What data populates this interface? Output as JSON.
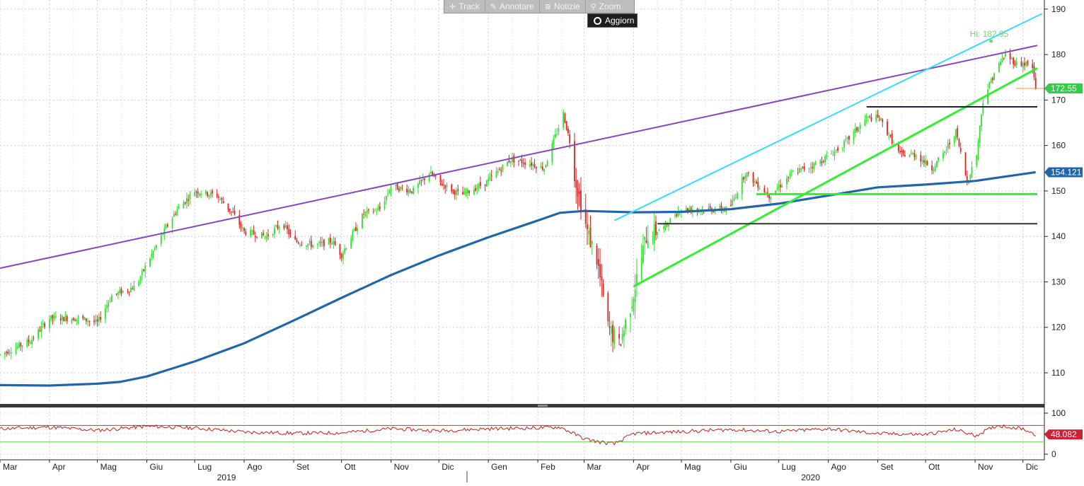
{
  "toolbar": {
    "track_label": "Track",
    "annotate_label": "Annotare",
    "news_label": "Notizie",
    "zoom_label": "Zoom",
    "update_label": "Aggiorn"
  },
  "colors": {
    "up": "#33dd33",
    "down": "#dd2222",
    "ma": "#2266aa",
    "purple_line": "#8844bb",
    "cyan_line": "#33ddff",
    "green_line": "#33ee33",
    "rsi": "#bb2222",
    "rsi_upper": "#cc3333",
    "rsi_lower": "#66dd44",
    "last_price": "#33cc44",
    "ma_label": "#2266aa",
    "rsi_label": "#cc2233"
  },
  "chart_data": [
    {
      "type": "candlestick",
      "panel": "price",
      "ylim": [
        103,
        192
      ],
      "yticks": [
        110,
        120,
        130,
        140,
        150,
        160,
        170,
        180,
        190
      ],
      "date_range": [
        "2019-03-01",
        "2020-12-10"
      ],
      "x_month_labels": [
        {
          "date": "2019-03-01",
          "label": "Mar"
        },
        {
          "date": "2019-04-01",
          "label": "Apr"
        },
        {
          "date": "2019-05-01",
          "label": "Mag"
        },
        {
          "date": "2019-06-01",
          "label": "Giu"
        },
        {
          "date": "2019-07-01",
          "label": "Lug"
        },
        {
          "date": "2019-08-01",
          "label": "Ago"
        },
        {
          "date": "2019-09-01",
          "label": "Set"
        },
        {
          "date": "2019-10-01",
          "label": "Ott"
        },
        {
          "date": "2019-11-01",
          "label": "Nov"
        },
        {
          "date": "2019-12-01",
          "label": "Dic"
        },
        {
          "date": "2020-01-01",
          "label": "Gen"
        },
        {
          "date": "2020-02-01",
          "label": "Feb"
        },
        {
          "date": "2020-03-01",
          "label": "Mar"
        },
        {
          "date": "2020-04-01",
          "label": "Apr"
        },
        {
          "date": "2020-05-01",
          "label": "Mag"
        },
        {
          "date": "2020-06-01",
          "label": "Giu"
        },
        {
          "date": "2020-07-01",
          "label": "Lug"
        },
        {
          "date": "2020-08-01",
          "label": "Ago"
        },
        {
          "date": "2020-09-01",
          "label": "Set"
        },
        {
          "date": "2020-10-01",
          "label": "Ott"
        },
        {
          "date": "2020-11-01",
          "label": "Nov"
        },
        {
          "date": "2020-12-01",
          "label": "Dic"
        }
      ],
      "x_year_labels": [
        {
          "date": "2019-07-15",
          "label": "2019"
        },
        {
          "date": "2020-07-15",
          "label": "2020"
        }
      ],
      "price_path": [
        [
          "2019-03-01",
          114
        ],
        [
          "2019-03-20",
          117
        ],
        [
          "2019-04-01",
          122
        ],
        [
          "2019-04-20",
          122
        ],
        [
          "2019-05-01",
          121
        ],
        [
          "2019-05-10",
          127
        ],
        [
          "2019-05-25",
          129
        ],
        [
          "2019-06-01",
          134
        ],
        [
          "2019-06-10",
          140
        ],
        [
          "2019-06-20",
          146
        ],
        [
          "2019-07-01",
          150
        ],
        [
          "2019-07-15",
          149
        ],
        [
          "2019-07-25",
          145
        ],
        [
          "2019-08-01",
          141
        ],
        [
          "2019-08-15",
          140
        ],
        [
          "2019-08-25",
          143
        ],
        [
          "2019-09-01",
          139
        ],
        [
          "2019-09-15",
          138
        ],
        [
          "2019-09-25",
          139
        ],
        [
          "2019-10-01",
          136
        ],
        [
          "2019-10-15",
          145
        ],
        [
          "2019-10-25",
          146
        ],
        [
          "2019-11-01",
          151
        ],
        [
          "2019-11-15",
          150
        ],
        [
          "2019-11-25",
          154
        ],
        [
          "2019-12-01",
          152
        ],
        [
          "2019-12-15",
          149
        ],
        [
          "2019-12-31",
          152
        ],
        [
          "2020-01-15",
          157
        ],
        [
          "2020-01-28",
          156
        ],
        [
          "2020-02-05",
          155
        ],
        [
          "2020-02-12",
          162
        ],
        [
          "2020-02-17",
          167
        ],
        [
          "2020-02-21",
          161
        ],
        [
          "2020-02-25",
          152
        ],
        [
          "2020-03-03",
          141
        ],
        [
          "2020-03-09",
          135
        ],
        [
          "2020-03-16",
          120
        ],
        [
          "2020-03-23",
          116
        ],
        [
          "2020-03-31",
          126
        ],
        [
          "2020-04-09",
          140
        ],
        [
          "2020-04-20",
          142
        ],
        [
          "2020-04-30",
          146
        ],
        [
          "2020-05-15",
          146
        ],
        [
          "2020-05-31",
          146
        ],
        [
          "2020-06-10",
          154
        ],
        [
          "2020-06-25",
          149
        ],
        [
          "2020-07-10",
          154
        ],
        [
          "2020-07-25",
          156
        ],
        [
          "2020-08-10",
          160
        ],
        [
          "2020-08-25",
          166
        ],
        [
          "2020-09-02",
          166
        ],
        [
          "2020-09-15",
          158
        ],
        [
          "2020-09-25",
          158
        ],
        [
          "2020-10-05",
          155
        ],
        [
          "2020-10-12",
          158
        ],
        [
          "2020-10-20",
          163
        ],
        [
          "2020-10-27",
          152
        ],
        [
          "2020-11-02",
          158
        ],
        [
          "2020-11-06",
          170
        ],
        [
          "2020-11-13",
          176
        ],
        [
          "2020-11-20",
          180
        ],
        [
          "2020-11-27",
          178
        ],
        [
          "2020-12-03",
          178
        ],
        [
          "2020-12-07",
          177
        ],
        [
          "2020-12-09",
          172.55
        ]
      ],
      "moving_average": [
        [
          "2019-03-01",
          107.3
        ],
        [
          "2019-04-01",
          107.2
        ],
        [
          "2019-05-01",
          107.6
        ],
        [
          "2019-05-15",
          108.0
        ],
        [
          "2019-06-01",
          109.2
        ],
        [
          "2019-07-01",
          112.5
        ],
        [
          "2019-08-01",
          116.5
        ],
        [
          "2019-09-01",
          121.5
        ],
        [
          "2019-10-01",
          126.5
        ],
        [
          "2019-11-01",
          131.5
        ],
        [
          "2019-12-01",
          135.8
        ],
        [
          "2020-01-01",
          139.8
        ],
        [
          "2020-02-01",
          143.5
        ],
        [
          "2020-02-15",
          145.2
        ],
        [
          "2020-03-01",
          145.6
        ],
        [
          "2020-04-01",
          145.3
        ],
        [
          "2020-05-01",
          145.4
        ],
        [
          "2020-06-01",
          146.0
        ],
        [
          "2020-07-01",
          147.2
        ],
        [
          "2020-08-01",
          149.0
        ],
        [
          "2020-09-01",
          150.8
        ],
        [
          "2020-10-01",
          151.4
        ],
        [
          "2020-11-01",
          152.2
        ],
        [
          "2020-12-09",
          154.121
        ]
      ],
      "trendlines": [
        {
          "name": "purple-trendline",
          "color": "#8844bb",
          "from": [
            "2019-03-01",
            133
          ],
          "to": [
            "2020-12-10",
            182
          ]
        },
        {
          "name": "cyan-channel-upper",
          "color": "#33ddff",
          "from": [
            "2020-03-20",
            143.5
          ],
          "to": [
            "2020-12-13",
            189
          ]
        },
        {
          "name": "green-channel-lower",
          "color": "#33ee33",
          "from": [
            "2020-04-01",
            129
          ],
          "to": [
            "2020-12-10",
            177
          ]
        }
      ],
      "horizontal_lines": [
        {
          "name": "resistance-line-dark-purple",
          "color": "#2a1a40",
          "y": 168.5,
          "from": "2020-08-25",
          "to": "2020-12-10"
        },
        {
          "name": "support-line-green",
          "color": "#33ee33",
          "y": 149.3,
          "from": "2020-06-17",
          "to": "2020-12-10"
        },
        {
          "name": "support-line-dark",
          "color": "#333333",
          "y": 142.8,
          "from": "2020-04-16",
          "to": "2020-12-10"
        }
      ],
      "high_marker": {
        "date": "2020-11-11",
        "value": 182.95,
        "label": "Hi: 182.95"
      },
      "last_price": {
        "value": 172.55,
        "label": "172.55"
      },
      "ma_last": {
        "value": 154.121,
        "label": "154.121"
      }
    },
    {
      "type": "line",
      "panel": "rsi",
      "ylim": [
        -3,
        106
      ],
      "yticks": [
        0,
        50,
        100
      ],
      "upper_level": 70,
      "lower_level": 30,
      "rsi_path": [
        [
          "2019-03-01",
          62
        ],
        [
          "2019-04-01",
          66
        ],
        [
          "2019-05-01",
          58
        ],
        [
          "2019-06-01",
          68
        ],
        [
          "2019-07-01",
          64
        ],
        [
          "2019-08-01",
          54
        ],
        [
          "2019-09-01",
          51
        ],
        [
          "2019-10-01",
          52
        ],
        [
          "2019-11-01",
          62
        ],
        [
          "2019-12-01",
          57
        ],
        [
          "2020-01-01",
          62
        ],
        [
          "2020-02-01",
          64
        ],
        [
          "2020-02-15",
          66
        ],
        [
          "2020-03-01",
          38
        ],
        [
          "2020-03-10",
          30
        ],
        [
          "2020-03-20",
          25
        ],
        [
          "2020-04-01",
          50
        ],
        [
          "2020-05-01",
          55
        ],
        [
          "2020-06-01",
          60
        ],
        [
          "2020-07-01",
          55
        ],
        [
          "2020-08-01",
          62
        ],
        [
          "2020-09-01",
          50
        ],
        [
          "2020-10-01",
          48
        ],
        [
          "2020-10-20",
          60
        ],
        [
          "2020-11-01",
          45
        ],
        [
          "2020-11-15",
          70
        ],
        [
          "2020-12-01",
          62
        ],
        [
          "2020-12-09",
          48.082
        ]
      ],
      "last_value": {
        "value": 48.082,
        "label": "48.082"
      }
    }
  ]
}
